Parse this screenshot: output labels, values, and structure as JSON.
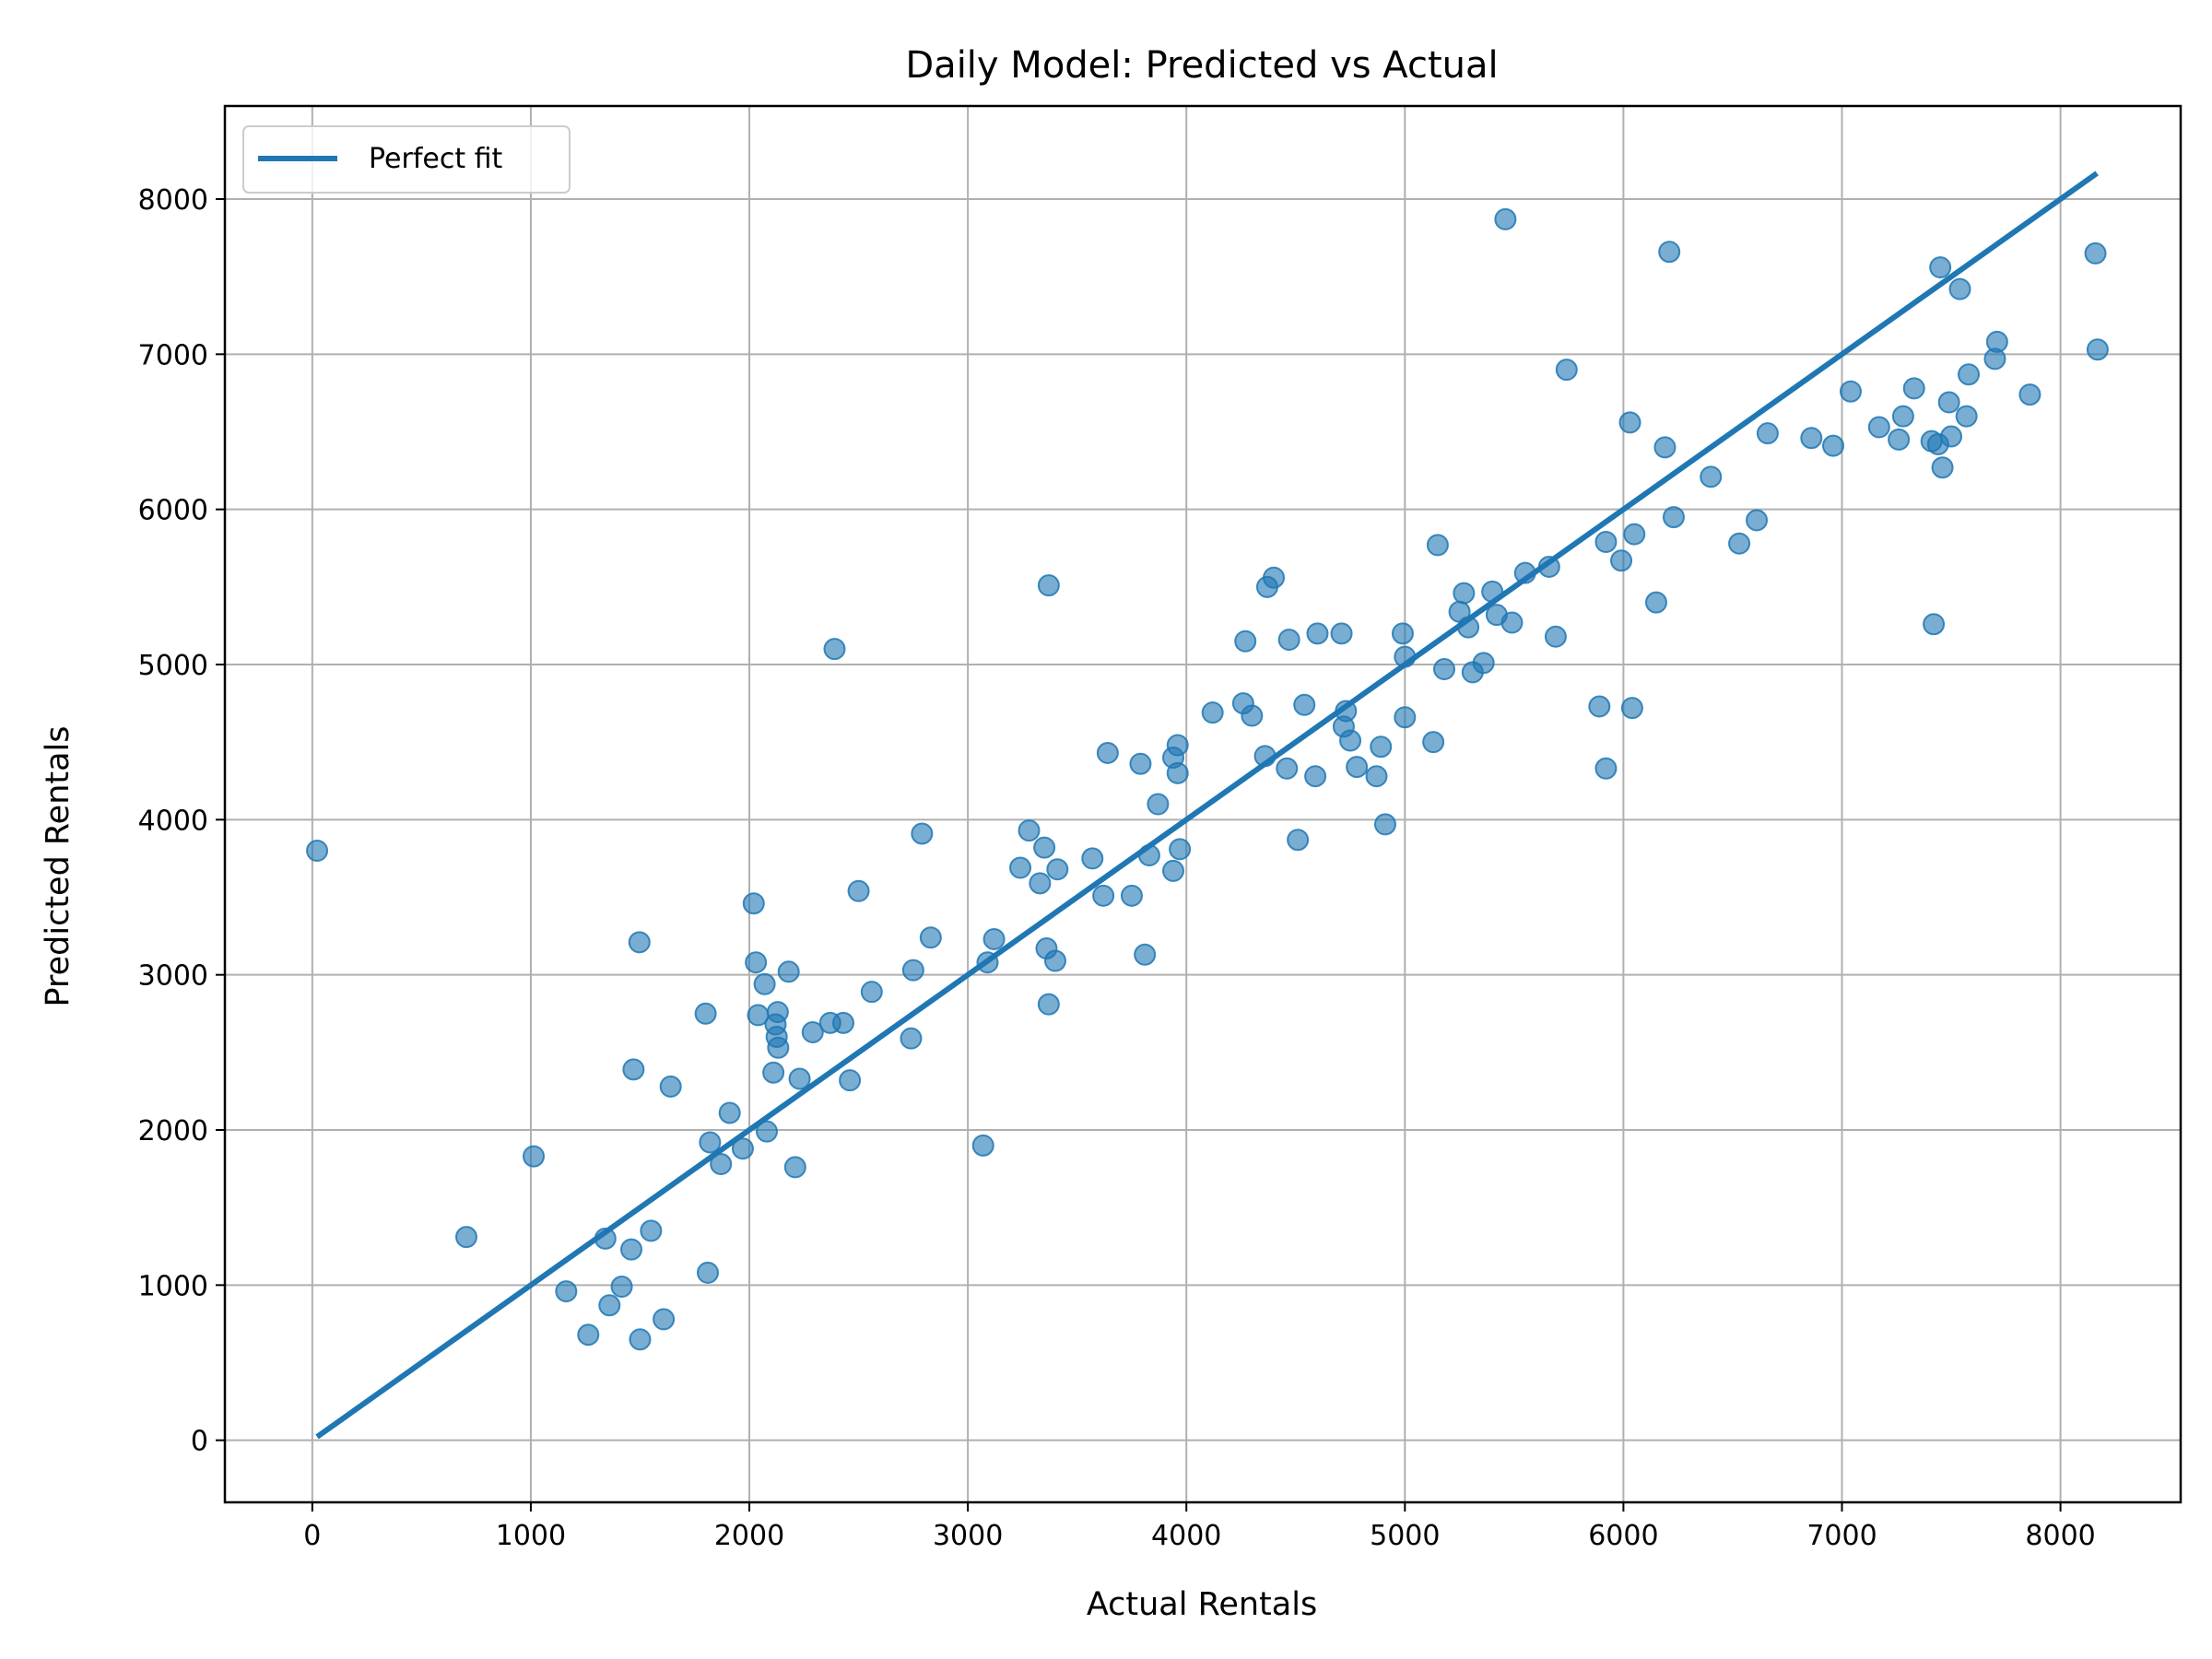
{
  "chart_data": {
    "type": "scatter",
    "title": "Daily Model: Predicted vs Actual",
    "xlabel": "Actual Rentals",
    "ylabel": "Predicted Rentals",
    "xlim": [
      -400,
      8550
    ],
    "ylim": [
      -400,
      8600
    ],
    "xticks": [
      0,
      1000,
      2000,
      3000,
      4000,
      5000,
      6000,
      7000,
      8000
    ],
    "yticks": [
      0,
      1000,
      2000,
      3000,
      4000,
      5000,
      6000,
      7000,
      8000
    ],
    "grid": true,
    "legend_position": "top-left",
    "colors": {
      "points": "#1f77b4",
      "line": "#1f77b4"
    },
    "reference_line": {
      "name": "Perfect fit",
      "x": [
        22,
        8167
      ],
      "y": [
        22,
        8167
      ]
    },
    "points": [
      [
        22,
        3800
      ],
      [
        705,
        1310
      ],
      [
        1013,
        1830
      ],
      [
        1162,
        960
      ],
      [
        1263,
        680
      ],
      [
        1341,
        1300
      ],
      [
        1360,
        870
      ],
      [
        1416,
        990
      ],
      [
        1460,
        1230
      ],
      [
        1470,
        2390
      ],
      [
        1497,
        3210
      ],
      [
        1500,
        650
      ],
      [
        1550,
        1350
      ],
      [
        1608,
        780
      ],
      [
        1640,
        2280
      ],
      [
        1800,
        2750
      ],
      [
        1810,
        1080
      ],
      [
        1820,
        1920
      ],
      [
        1870,
        1780
      ],
      [
        1910,
        2110
      ],
      [
        1970,
        1880
      ],
      [
        2020,
        3460
      ],
      [
        2030,
        3080
      ],
      [
        2040,
        2740
      ],
      [
        2070,
        2940
      ],
      [
        2080,
        1990
      ],
      [
        2110,
        2370
      ],
      [
        2120,
        2680
      ],
      [
        2125,
        2600
      ],
      [
        2130,
        2760
      ],
      [
        2132,
        2530
      ],
      [
        2180,
        3020
      ],
      [
        2210,
        1760
      ],
      [
        2230,
        2330
      ],
      [
        2290,
        2630
      ],
      [
        2370,
        2690
      ],
      [
        2390,
        5100
      ],
      [
        2430,
        2690
      ],
      [
        2460,
        2320
      ],
      [
        2500,
        3540
      ],
      [
        2560,
        2890
      ],
      [
        2740,
        2590
      ],
      [
        2750,
        3030
      ],
      [
        2790,
        3910
      ],
      [
        2830,
        3240
      ],
      [
        3070,
        1900
      ],
      [
        3090,
        3080
      ],
      [
        3120,
        3230
      ],
      [
        3240,
        3690
      ],
      [
        3280,
        3930
      ],
      [
        3330,
        3590
      ],
      [
        3350,
        3820
      ],
      [
        3360,
        3170
      ],
      [
        3370,
        2810
      ],
      [
        3370,
        5510
      ],
      [
        3400,
        3090
      ],
      [
        3410,
        3680
      ],
      [
        3570,
        3750
      ],
      [
        3620,
        3510
      ],
      [
        3640,
        4430
      ],
      [
        3750,
        3510
      ],
      [
        3790,
        4360
      ],
      [
        3810,
        3130
      ],
      [
        3830,
        3770
      ],
      [
        3870,
        4100
      ],
      [
        3940,
        3670
      ],
      [
        3940,
        4400
      ],
      [
        3960,
        4480
      ],
      [
        3960,
        4300
      ],
      [
        3970,
        3810
      ],
      [
        4120,
        4690
      ],
      [
        4260,
        4750
      ],
      [
        4270,
        5150
      ],
      [
        4300,
        4670
      ],
      [
        4360,
        4410
      ],
      [
        4370,
        5500
      ],
      [
        4400,
        5560
      ],
      [
        4460,
        4330
      ],
      [
        4470,
        5160
      ],
      [
        4510,
        3870
      ],
      [
        4540,
        4740
      ],
      [
        4590,
        4280
      ],
      [
        4600,
        5200
      ],
      [
        4710,
        5200
      ],
      [
        4720,
        4600
      ],
      [
        4730,
        4700
      ],
      [
        4750,
        4510
      ],
      [
        4780,
        4340
      ],
      [
        4870,
        4280
      ],
      [
        4890,
        4470
      ],
      [
        4910,
        3970
      ],
      [
        4990,
        5200
      ],
      [
        5000,
        4660
      ],
      [
        5000,
        5050
      ],
      [
        5130,
        4500
      ],
      [
        5150,
        5770
      ],
      [
        5180,
        4970
      ],
      [
        5250,
        5340
      ],
      [
        5270,
        5460
      ],
      [
        5290,
        5240
      ],
      [
        5310,
        4950
      ],
      [
        5360,
        5010
      ],
      [
        5400,
        5470
      ],
      [
        5420,
        5320
      ],
      [
        5460,
        7870
      ],
      [
        5490,
        5270
      ],
      [
        5550,
        5590
      ],
      [
        5660,
        5630
      ],
      [
        5690,
        5180
      ],
      [
        5740,
        6900
      ],
      [
        5890,
        4730
      ],
      [
        5920,
        4330
      ],
      [
        5920,
        5790
      ],
      [
        5990,
        5670
      ],
      [
        6030,
        6560
      ],
      [
        6040,
        4720
      ],
      [
        6050,
        5840
      ],
      [
        6150,
        5400
      ],
      [
        6190,
        6400
      ],
      [
        6210,
        7660
      ],
      [
        6230,
        5950
      ],
      [
        6400,
        6210
      ],
      [
        6530,
        5780
      ],
      [
        6610,
        5930
      ],
      [
        6660,
        6490
      ],
      [
        6860,
        6460
      ],
      [
        6960,
        6410
      ],
      [
        7040,
        6760
      ],
      [
        7170,
        6530
      ],
      [
        7260,
        6450
      ],
      [
        7280,
        6600
      ],
      [
        7330,
        6780
      ],
      [
        7410,
        6440
      ],
      [
        7420,
        5260
      ],
      [
        7440,
        6420
      ],
      [
        7450,
        7560
      ],
      [
        7460,
        6270
      ],
      [
        7490,
        6690
      ],
      [
        7500,
        6470
      ],
      [
        7540,
        7420
      ],
      [
        7570,
        6600
      ],
      [
        7580,
        6870
      ],
      [
        7700,
        6970
      ],
      [
        7710,
        7080
      ],
      [
        7860,
        6740
      ],
      [
        8160,
        7650
      ],
      [
        8170,
        7030
      ]
    ]
  }
}
